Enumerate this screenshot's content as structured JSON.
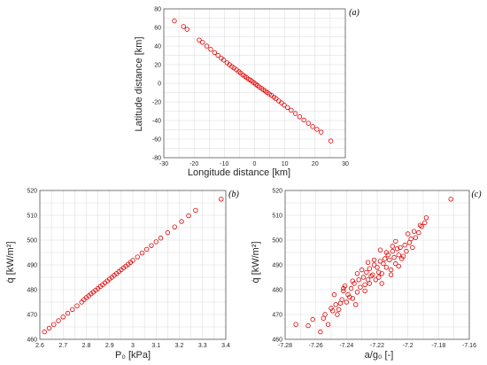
{
  "chart_data": [
    {
      "panel": "(a)",
      "type": "scatter",
      "xlabel": "Longitude distance [km]",
      "ylabel": "Latitude distance [km]",
      "xlim": [
        -30,
        30
      ],
      "ylim": [
        -80,
        80
      ],
      "xticks": [
        -30,
        -20,
        -10,
        0,
        10,
        20,
        30
      ],
      "yticks": [
        -80,
        -60,
        -40,
        -20,
        0,
        20,
        40,
        60,
        80
      ],
      "grid": true,
      "marker_color": "#e00000",
      "x": [
        -26.5,
        -23.5,
        -22.3,
        -18.3,
        -17.2,
        -15.8,
        -14.5,
        -13.2,
        -12.1,
        -11.0,
        -10.2,
        -9.1,
        -8.3,
        -7.5,
        -6.8,
        -6.0,
        -5.2,
        -4.6,
        -3.9,
        -3.2,
        -2.6,
        -2.0,
        -1.4,
        -0.8,
        -0.2,
        0.4,
        1.0,
        1.6,
        2.3,
        2.9,
        3.6,
        4.2,
        4.9,
        5.6,
        6.4,
        7.1,
        8.0,
        8.9,
        9.8,
        10.9,
        12.1,
        13.5,
        14.9,
        16.3,
        17.8,
        19.2,
        20.6,
        22.0,
        25.2
      ],
      "y": [
        67.0,
        61.0,
        58.0,
        46.5,
        44.0,
        40.0,
        36.5,
        33.0,
        30.0,
        27.0,
        25.0,
        22.0,
        20.0,
        18.0,
        16.5,
        14.5,
        12.5,
        11.0,
        9.0,
        7.5,
        6.0,
        4.5,
        3.5,
        2.0,
        0.5,
        -1.0,
        -2.5,
        -4.0,
        -5.5,
        -7.0,
        -8.5,
        -10.0,
        -11.5,
        -13.0,
        -15.0,
        -16.5,
        -19.0,
        -21.0,
        -23.5,
        -26.0,
        -29.0,
        -32.5,
        -36.0,
        -39.5,
        -43.0,
        -46.5,
        -49.5,
        -52.5,
        -62.0
      ]
    },
    {
      "panel": "(b)",
      "type": "scatter",
      "xlabel": "P₀ [kPa]",
      "ylabel": "q̇ [kW/m²]",
      "xlim": [
        2.6,
        3.4
      ],
      "ylim": [
        460,
        520
      ],
      "xticks": [
        2.6,
        2.7,
        2.8,
        2.9,
        3.0,
        3.1,
        3.2,
        3.3,
        3.4
      ],
      "xtick_labels": [
        "2.6",
        "2.7",
        "2.8",
        "2.9",
        "3",
        "3.1",
        "3.2",
        "3.3",
        "3.4"
      ],
      "yticks": [
        460,
        470,
        480,
        490,
        500,
        510,
        520
      ],
      "grid": true,
      "marker_color": "#e00000",
      "x": [
        2.62,
        2.64,
        2.66,
        2.68,
        2.7,
        2.72,
        2.74,
        2.76,
        2.78,
        2.79,
        2.8,
        2.81,
        2.82,
        2.83,
        2.84,
        2.85,
        2.86,
        2.87,
        2.88,
        2.89,
        2.9,
        2.91,
        2.92,
        2.93,
        2.94,
        2.95,
        2.96,
        2.97,
        2.98,
        2.99,
        3.0,
        3.02,
        3.04,
        3.06,
        3.08,
        3.1,
        3.12,
        3.15,
        3.18,
        3.21,
        3.24,
        3.27,
        3.38
      ],
      "y": [
        463.0,
        464.5,
        466.0,
        467.5,
        469.0,
        470.5,
        472.0,
        473.5,
        475.0,
        476.0,
        476.8,
        477.5,
        478.3,
        479.0,
        479.8,
        480.5,
        481.3,
        482.0,
        482.8,
        483.5,
        484.3,
        485.0,
        485.8,
        486.5,
        487.3,
        488.0,
        488.8,
        489.5,
        490.3,
        491.0,
        491.8,
        493.2,
        494.8,
        496.3,
        497.8,
        499.3,
        500.8,
        503.0,
        505.3,
        507.5,
        509.8,
        512.0,
        516.5
      ]
    },
    {
      "panel": "(c)",
      "type": "scatter",
      "xlabel": "a/g₀ [-]",
      "ylabel": "q̇ [kW/m²]",
      "xlim": [
        -7.28,
        -7.16
      ],
      "ylim": [
        460,
        520
      ],
      "xticks": [
        -7.28,
        -7.26,
        -7.24,
        -7.22,
        -7.2,
        -7.18,
        -7.16
      ],
      "xtick_labels": [
        "-7.28",
        "-7.26",
        "-7.24",
        "-7.22",
        "-7.2",
        "-7.18",
        "-7.16"
      ],
      "yticks": [
        460,
        470,
        480,
        490,
        500,
        510,
        520
      ],
      "grid": true,
      "marker_color": "#e00000",
      "x": [
        -7.273,
        -7.265,
        -7.262,
        -7.257,
        -7.254,
        -7.252,
        -7.249,
        -7.247,
        -7.245,
        -7.243,
        -7.242,
        -7.24,
        -7.239,
        -7.237,
        -7.236,
        -7.235,
        -7.233,
        -7.232,
        -7.231,
        -7.229,
        -7.228,
        -7.227,
        -7.226,
        -7.225,
        -7.224,
        -7.223,
        -7.222,
        -7.221,
        -7.22,
        -7.219,
        -7.218,
        -7.217,
        -7.216,
        -7.215,
        -7.214,
        -7.213,
        -7.212,
        -7.211,
        -7.21,
        -7.209,
        -7.208,
        -7.207,
        -7.206,
        -7.205,
        -7.204,
        -7.202,
        -7.201,
        -7.199,
        -7.197,
        -7.195,
        -7.193,
        -7.191,
        -7.189,
        -7.188,
        -7.172,
        -7.248,
        -7.241,
        -7.236,
        -7.23,
        -7.225,
        -7.219,
        -7.214,
        -7.208,
        -7.203,
        -7.198,
        -7.244,
        -7.238,
        -7.233,
        -7.228,
        -7.222,
        -7.217,
        -7.211,
        -7.206,
        -7.2,
        -7.255,
        -7.25,
        -7.246,
        -7.242,
        -7.234,
        -7.226,
        -7.218,
        -7.21,
        -7.196,
        -7.192
      ],
      "y": [
        466.0,
        465.5,
        468.0,
        463.0,
        470.0,
        466.0,
        471.5,
        474.0,
        472.0,
        476.0,
        479.5,
        475.0,
        478.0,
        480.5,
        476.5,
        482.5,
        479.0,
        484.0,
        481.0,
        485.0,
        482.0,
        487.0,
        484.0,
        488.5,
        485.5,
        486.0,
        490.0,
        484.0,
        489.0,
        487.0,
        491.5,
        486.5,
        490.5,
        492.5,
        489.0,
        494.0,
        492.0,
        488.0,
        495.5,
        493.0,
        490.5,
        496.5,
        494.0,
        497.0,
        492.5,
        498.0,
        495.5,
        499.0,
        497.0,
        501.0,
        503.0,
        505.5,
        507.0,
        509.0,
        516.5,
        478.0,
        481.5,
        483.5,
        488.0,
        482.5,
        485.0,
        495.0,
        499.5,
        493.5,
        500.5,
        474.5,
        477.0,
        486.5,
        479.5,
        492.0,
        482.5,
        486.0,
        489.5,
        502.5,
        468.5,
        472.5,
        470.0,
        480.5,
        474.0,
        491.0,
        496.0,
        497.5,
        503.5,
        506.0
      ]
    }
  ]
}
